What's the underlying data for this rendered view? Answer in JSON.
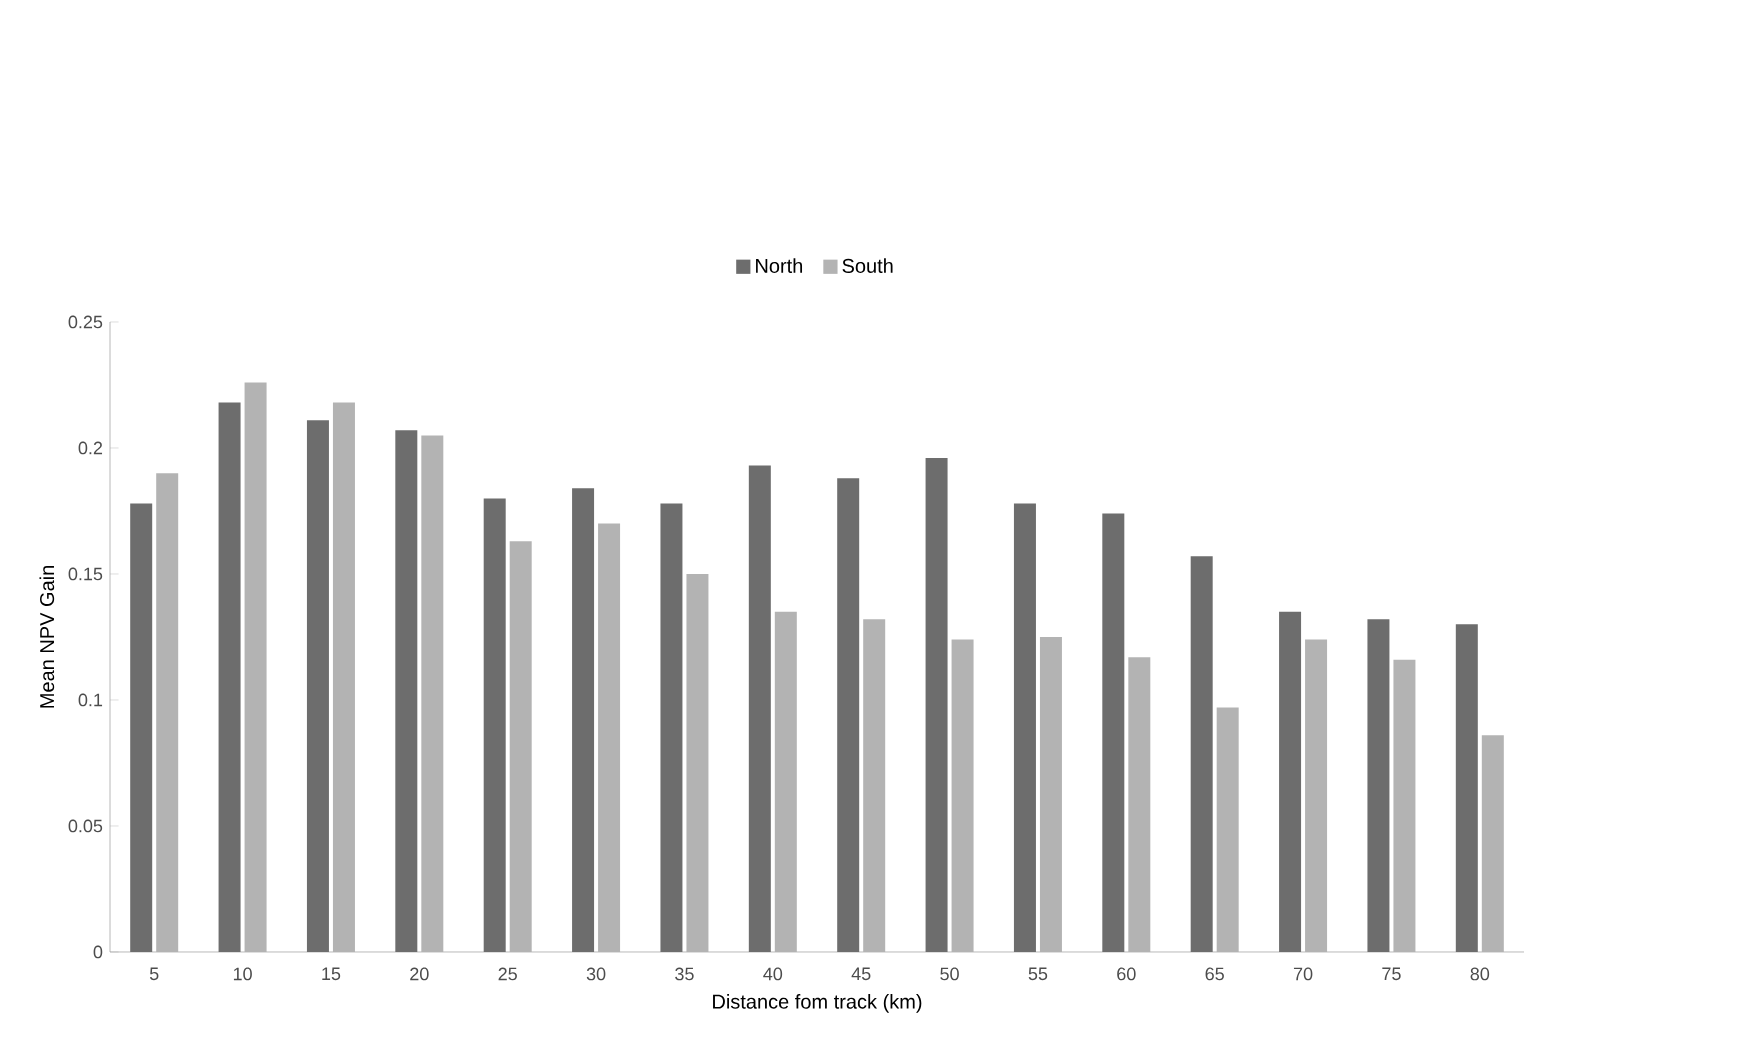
{
  "chart_data": {
    "type": "bar",
    "xlabel": "Distance fom track (km)",
    "ylabel": "Mean NPV Gain",
    "categories": [
      "5",
      "10",
      "15",
      "20",
      "25",
      "30",
      "35",
      "40",
      "45",
      "50",
      "55",
      "60",
      "65",
      "70",
      "75",
      "80"
    ],
    "series": [
      {
        "name": "North",
        "color": "#6d6d6d",
        "values": [
          0.178,
          0.218,
          0.211,
          0.207,
          0.18,
          0.184,
          0.178,
          0.193,
          0.188,
          0.196,
          0.178,
          0.174,
          0.157,
          0.135,
          0.132,
          0.13
        ]
      },
      {
        "name": "South",
        "color": "#b3b3b3",
        "values": [
          0.19,
          0.226,
          0.218,
          0.205,
          0.163,
          0.17,
          0.15,
          0.135,
          0.132,
          0.124,
          0.125,
          0.117,
          0.097,
          0.124,
          0.116,
          0.086
        ]
      }
    ],
    "ylim": [
      0,
      0.25
    ],
    "yticks": [
      0,
      0.05,
      0.1,
      0.15,
      0.2,
      0.25
    ],
    "grid": false,
    "legend": "top"
  }
}
